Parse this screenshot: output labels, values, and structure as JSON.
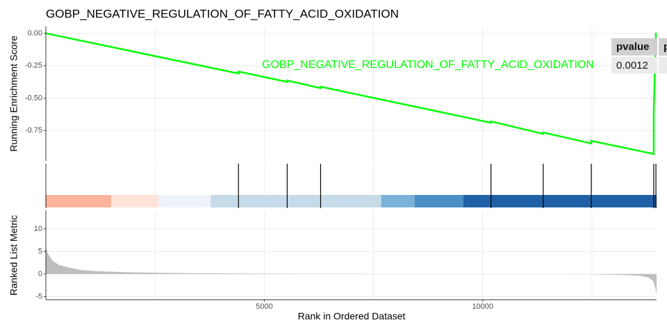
{
  "chart_data": [
    {
      "type": "line",
      "title": "GOBP_NEGATIVE_REGULATION_OF_FATTY_ACID_OXIDATION",
      "ylabel": "Running Enrichment Score",
      "series": [
        {
          "name": "GOBP_NEGATIVE_REGULATION_OF_FATTY_ACID_OXIDATION",
          "color": "#00ff00",
          "x": [
            1,
            4410,
            4410,
            5525,
            5525,
            6290,
            6290,
            10190,
            10190,
            11385,
            11385,
            12485,
            12485,
            13915,
            13915,
            13965,
            13980
          ],
          "values": [
            0,
            -0.31,
            -0.295,
            -0.375,
            -0.364,
            -0.423,
            -0.412,
            -0.69,
            -0.68,
            -0.776,
            -0.765,
            -0.85,
            -0.83,
            -0.931,
            -0.605,
            0,
            0
          ]
        }
      ],
      "xlim": [
        1,
        13980
      ],
      "ylim": [
        -0.985,
        0.054
      ],
      "yticks": [
        {
          "value": 0,
          "label": "0.00"
        },
        {
          "value": -0.25,
          "label": "-0.25"
        },
        {
          "value": -0.5,
          "label": "-0.50"
        },
        {
          "value": -0.75,
          "label": "-0.75"
        }
      ],
      "xgrid": [
        2500,
        5000,
        7500,
        10000,
        12500
      ],
      "grid": true,
      "table": {
        "header": [
          "pvalue",
          "p"
        ],
        "rows": [
          [
            "0.0012"
          ]
        ]
      }
    },
    {
      "type": "rug",
      "x": [
        4410,
        5525,
        6290,
        10190,
        11385,
        12485,
        13915,
        13965
      ],
      "color": "#000000",
      "xlim": [
        1,
        13980
      ],
      "xgrid": [
        2500,
        5000,
        7500,
        10000,
        12500
      ],
      "heat": [
        {
          "start": 1,
          "end": 16,
          "color": "#d6604d"
        },
        {
          "start": 16,
          "end": 1497,
          "color": "#fcb49c"
        },
        {
          "start": 1497,
          "end": 2580,
          "color": "#fee4d8"
        },
        {
          "start": 2580,
          "end": 3774,
          "color": "#eef3fb"
        },
        {
          "start": 3774,
          "end": 7675,
          "color": "#c6dbe9"
        },
        {
          "start": 7675,
          "end": 8439,
          "color": "#7bb2d9"
        },
        {
          "start": 8439,
          "end": 9554,
          "color": "#4a8fc5"
        },
        {
          "start": 9554,
          "end": 13980,
          "color": "#2060a7"
        }
      ]
    },
    {
      "type": "area",
      "ylabel": "Ranked List Metric",
      "xlabel": "Rank in Ordered Dataset",
      "color": "#bebebe",
      "x": [
        1,
        50,
        150,
        300,
        500,
        800,
        1200,
        2000,
        3000,
        4500,
        6000,
        7500,
        8800,
        9500,
        11000,
        12500,
        13200,
        13600,
        13800,
        13900,
        13950,
        13980
      ],
      "values": [
        6,
        4.5,
        3,
        2,
        1.5,
        0.9,
        0.6,
        0.35,
        0.2,
        0.1,
        0.05,
        0.02,
        0,
        0,
        0,
        -0.05,
        -0.2,
        -0.4,
        -0.8,
        -1.5,
        -3,
        -4.5
      ],
      "xlim": [
        1,
        13980
      ],
      "ylim": [
        -5.7,
        14.15
      ],
      "yticks": [
        10,
        5,
        0,
        -5
      ],
      "xticks": [
        5000,
        10000
      ],
      "xgrid": [
        2500,
        5000,
        7500,
        10000,
        12500
      ],
      "grid": true
    }
  ]
}
